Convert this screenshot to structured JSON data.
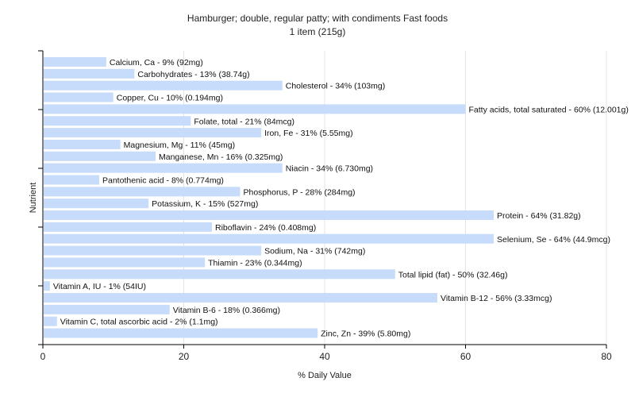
{
  "chart_data": {
    "type": "bar",
    "orientation": "horizontal",
    "title": "Hamburger; double, regular patty; with condiments Fast foods",
    "subtitle": "1 item (215g)",
    "xlabel": "% Daily Value",
    "ylabel": "Nutrient",
    "xlim": [
      0,
      80
    ],
    "xticks": [
      0,
      20,
      40,
      60,
      80
    ],
    "grid": true,
    "bar_color": "#c6dcfa",
    "categories": [
      "Calcium, Ca",
      "Carbohydrates",
      "Cholesterol",
      "Copper, Cu",
      "Fatty acids, total saturated",
      "Folate, total",
      "Iron, Fe",
      "Magnesium, Mg",
      "Manganese, Mn",
      "Niacin",
      "Pantothenic acid",
      "Phosphorus, P",
      "Potassium, K",
      "Protein",
      "Riboflavin",
      "Selenium, Se",
      "Sodium, Na",
      "Thiamin",
      "Total lipid (fat)",
      "Vitamin A, IU",
      "Vitamin B-12",
      "Vitamin B-6",
      "Vitamin C, total ascorbic acid",
      "Zinc, Zn"
    ],
    "values": [
      9,
      13,
      34,
      10,
      60,
      21,
      31,
      11,
      16,
      34,
      8,
      28,
      15,
      64,
      24,
      64,
      31,
      23,
      50,
      1,
      56,
      18,
      2,
      39
    ],
    "labels": [
      "Calcium, Ca - 9% (92mg)",
      "Carbohydrates - 13% (38.74g)",
      "Cholesterol - 34% (103mg)",
      "Copper, Cu - 10% (0.194mg)",
      "Fatty acids, total saturated - 60% (12.001g)",
      "Folate, total - 21% (84mcg)",
      "Iron, Fe - 31% (5.55mg)",
      "Magnesium, Mg - 11% (45mg)",
      "Manganese, Mn - 16% (0.325mg)",
      "Niacin - 34% (6.730mg)",
      "Pantothenic acid - 8% (0.774mg)",
      "Phosphorus, P - 28% (284mg)",
      "Potassium, K - 15% (527mg)",
      "Protein - 64% (31.82g)",
      "Riboflavin - 24% (0.408mg)",
      "Selenium, Se - 64% (44.9mcg)",
      "Sodium, Na - 31% (742mg)",
      "Thiamin - 23% (0.344mg)",
      "Total lipid (fat) - 50% (32.46g)",
      "Vitamin A, IU - 1% (54IU)",
      "Vitamin B-12 - 56% (3.33mcg)",
      "Vitamin B-6 - 18% (0.366mg)",
      "Vitamin C, total ascorbic acid - 2% (1.1mg)",
      "Zinc, Zn - 39% (5.80mg)"
    ]
  }
}
